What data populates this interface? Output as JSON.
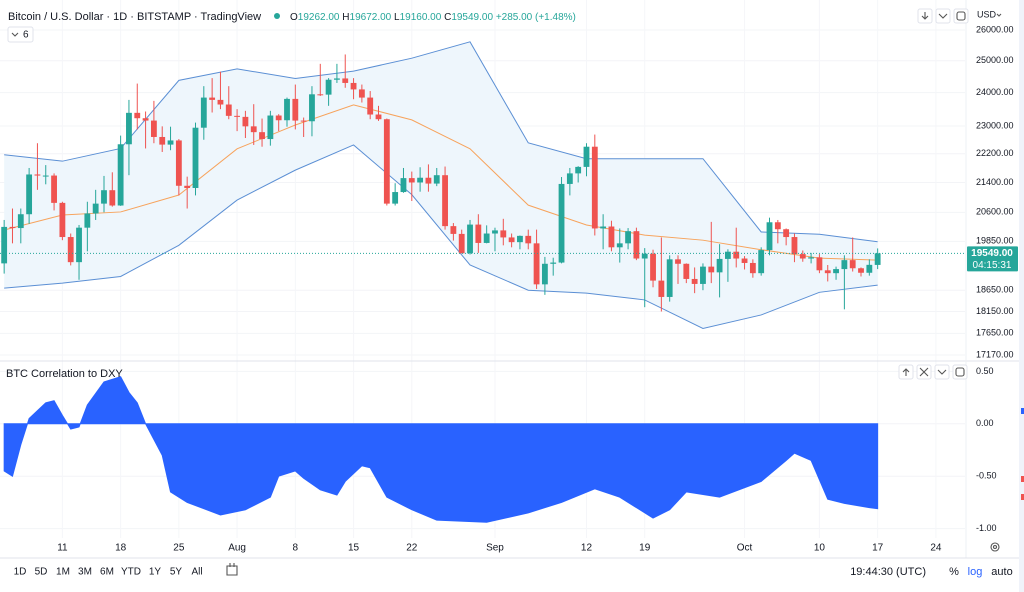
{
  "header": {
    "title": "Bitcoin / U.S. Dollar · 1D · BITSTAMP · TradingView",
    "ohlc": [
      [
        "O",
        "19262.00"
      ],
      [
        "H",
        "19672.00"
      ],
      [
        "L",
        "19160.00"
      ],
      [
        "C",
        "19549.00"
      ],
      [
        "",
        "+285.00 (+1.48%)"
      ]
    ],
    "indicator_count": "6",
    "currency": "USD"
  },
  "chart_data": [
    {
      "type": "candlestick",
      "log": true,
      "grid": true,
      "up_color": "#26a69a",
      "down_color": "#ef5350",
      "price_label": "19549.00",
      "countdown": "04:15:31",
      "xlim": [
        -0.5,
        115.5
      ],
      "ylim": [
        17060,
        26740
      ],
      "yticks": [
        {
          "value": 26000,
          "label": "26000.00"
        },
        {
          "value": 25000,
          "label": "25000.00"
        },
        {
          "value": 24000,
          "label": "24000.00"
        },
        {
          "value": 23000,
          "label": "23000.00"
        },
        {
          "value": 22200,
          "label": "22200.00"
        },
        {
          "value": 21400,
          "label": "21400.00"
        },
        {
          "value": 20600,
          "label": "20600.00"
        },
        {
          "value": 19850,
          "label": "19850.00"
        },
        {
          "value": 18650,
          "label": "18650.00"
        },
        {
          "value": 18150,
          "label": "18150.00"
        },
        {
          "value": 17650,
          "label": "17650.00"
        },
        {
          "value": 17170,
          "label": "17170.00"
        }
      ],
      "x": [
        0,
        1,
        2,
        3,
        4,
        5,
        6,
        7,
        8,
        9,
        10,
        11,
        12,
        13,
        14,
        15,
        16,
        17,
        18,
        19,
        20,
        21,
        22,
        23,
        24,
        25,
        26,
        27,
        28,
        29,
        30,
        31,
        32,
        33,
        34,
        35,
        36,
        37,
        38,
        39,
        40,
        41,
        42,
        43,
        44,
        45,
        46,
        47,
        48,
        49,
        50,
        51,
        52,
        53,
        54,
        55,
        56,
        57,
        58,
        59,
        60,
        61,
        62,
        63,
        64,
        65,
        66,
        67,
        68,
        69,
        70,
        71,
        72,
        73,
        74,
        75,
        76,
        77,
        78,
        79,
        80,
        81,
        82,
        83,
        84,
        85,
        86,
        87,
        88,
        89,
        90,
        91,
        92,
        93,
        94,
        95,
        96,
        97,
        98,
        99,
        100,
        101,
        102,
        103,
        104,
        105
      ],
      "open": [
        19300,
        20220,
        20190,
        20550,
        21620,
        21590,
        21590,
        20850,
        19960,
        19330,
        20200,
        20570,
        20830,
        21190,
        20780,
        22470,
        23390,
        23230,
        23160,
        22680,
        22460,
        22580,
        21310,
        21250,
        22950,
        23850,
        23780,
        23640,
        23300,
        23270,
        22990,
        22820,
        22620,
        23310,
        23170,
        23810,
        23160,
        23140,
        23950,
        23940,
        24400,
        24440,
        24300,
        24100,
        23850,
        23340,
        23200,
        20830,
        21140,
        21520,
        21400,
        21530,
        21370,
        21600,
        20240,
        20040,
        19550,
        20280,
        19810,
        20050,
        20130,
        19950,
        19830,
        19990,
        19800,
        18790,
        19290,
        19320,
        21360,
        21650,
        21830,
        22400,
        20180,
        20230,
        19700,
        19800,
        20110,
        19420,
        19540,
        18880,
        18490,
        19400,
        19290,
        18920,
        18800,
        19220,
        19080,
        19410,
        19590,
        19420,
        19310,
        19060,
        19630,
        20340,
        20160,
        19960,
        19530,
        19420,
        19450,
        19130,
        19060,
        19160,
        19380,
        19180,
        19070,
        19262
      ],
      "high": [
        20400,
        20700,
        20700,
        21800,
        22500,
        21880,
        21650,
        20880,
        20050,
        20270,
        20880,
        21200,
        21580,
        21680,
        22720,
        23780,
        24280,
        23430,
        23750,
        22990,
        22980,
        22620,
        21560,
        23100,
        24200,
        24450,
        24650,
        24200,
        23500,
        23450,
        23650,
        23220,
        23450,
        23350,
        23850,
        24250,
        23250,
        24200,
        24900,
        24450,
        24900,
        25200,
        24450,
        24250,
        24050,
        23600,
        23220,
        21380,
        21800,
        21700,
        21820,
        21900,
        21800,
        21840,
        20320,
        20150,
        20400,
        20550,
        20260,
        20200,
        20430,
        20050,
        20000,
        20150,
        20150,
        19460,
        19440,
        21550,
        21800,
        21850,
        22500,
        22750,
        20550,
        20380,
        20180,
        20190,
        20200,
        19680,
        19640,
        19950,
        19500,
        19500,
        19300,
        19200,
        19300,
        20350,
        19780,
        19650,
        20200,
        19480,
        19400,
        19700,
        20460,
        20400,
        20180,
        20050,
        19620,
        19560,
        19530,
        19260,
        19220,
        19500,
        19950,
        19200,
        19400,
        19672
      ],
      "low": [
        19050,
        19800,
        19800,
        20300,
        21200,
        21350,
        20650,
        19880,
        19250,
        18900,
        19600,
        20400,
        20600,
        20750,
        20770,
        21600,
        22900,
        22350,
        22500,
        22250,
        22300,
        21050,
        20700,
        21050,
        22600,
        23400,
        23500,
        23200,
        22850,
        22650,
        22450,
        22400,
        22430,
        22850,
        22980,
        22900,
        22680,
        22700,
        23900,
        23600,
        24300,
        24150,
        23800,
        23700,
        23200,
        23150,
        20780,
        20780,
        21120,
        20900,
        21150,
        21150,
        21300,
        20150,
        19870,
        19550,
        19520,
        19560,
        19800,
        19600,
        19750,
        19700,
        19650,
        19650,
        18680,
        18540,
        19000,
        19300,
        21050,
        21400,
        21570,
        20000,
        19650,
        19600,
        19320,
        19650,
        19380,
        18250,
        18720,
        18150,
        18380,
        18800,
        18820,
        18580,
        18650,
        18820,
        18480,
        18850,
        19200,
        19150,
        18950,
        19000,
        19500,
        19800,
        19750,
        19330,
        19340,
        19300,
        19060,
        18860,
        18900,
        18200,
        19100,
        18980,
        19000,
        19160
      ],
      "close": [
        20220,
        20190,
        20550,
        21620,
        21590,
        21590,
        20850,
        19960,
        19330,
        20200,
        20570,
        20830,
        21190,
        20780,
        22470,
        23390,
        23230,
        23160,
        22680,
        22460,
        22580,
        21310,
        21250,
        22950,
        23850,
        23780,
        23640,
        23300,
        23270,
        22990,
        22820,
        22620,
        23310,
        23170,
        23810,
        23160,
        23140,
        23950,
        23940,
        24400,
        24440,
        24300,
        24100,
        23850,
        23340,
        23200,
        20830,
        21140,
        21520,
        21400,
        21530,
        21370,
        21600,
        20240,
        20040,
        19550,
        20280,
        19810,
        20050,
        20130,
        19950,
        19830,
        19990,
        19800,
        18790,
        19290,
        19320,
        21360,
        21650,
        21830,
        22400,
        20180,
        20230,
        19700,
        19800,
        20110,
        19420,
        19540,
        18880,
        18490,
        19400,
        19290,
        18920,
        18800,
        19220,
        19080,
        19410,
        19590,
        19420,
        19310,
        19060,
        19630,
        20340,
        20160,
        19960,
        19530,
        19420,
        19450,
        19130,
        19060,
        19160,
        19380,
        19180,
        19070,
        19264,
        19549
      ],
      "band_fill": "#eef6fc",
      "overlays": [
        {
          "color": "#5b8fd4",
          "x": [
            0,
            7,
            14,
            21,
            28,
            35,
            42,
            49,
            56,
            63,
            70,
            77,
            84,
            91,
            98,
            105
          ],
          "values": [
            22170,
            21990,
            22350,
            24380,
            24740,
            24440,
            24670,
            25080,
            25610,
            22510,
            22060,
            22060,
            22060,
            20090,
            20030,
            19840
          ]
        },
        {
          "color": "#5b8fd4",
          "x": [
            0,
            7,
            14,
            21,
            28,
            35,
            42,
            49,
            56,
            63,
            70,
            77,
            84,
            91,
            98,
            105
          ],
          "values": [
            18700,
            18820,
            18980,
            19750,
            20925,
            21740,
            22450,
            21070,
            19260,
            18650,
            18580,
            18420,
            17760,
            18070,
            18600,
            18770
          ]
        },
        {
          "color": "#f7a35c",
          "x": [
            0,
            7,
            14,
            21,
            28,
            35,
            42,
            49,
            56,
            63,
            70,
            77,
            84,
            91,
            98,
            105
          ],
          "values": [
            20140,
            20530,
            20610,
            21060,
            22340,
            23030,
            23630,
            23180,
            22340,
            20790,
            20270,
            20010,
            19880,
            19640,
            19430,
            19380
          ]
        }
      ]
    },
    {
      "type": "area",
      "title": "BTC Correlation to DXY",
      "color": "#2962ff",
      "grid": true,
      "xlim": [
        -0.5,
        115.5
      ],
      "ylim": [
        -1.09,
        0.59
      ],
      "yticks": [
        {
          "value": 0.5,
          "label": "0.50"
        },
        {
          "value": 0,
          "label": "0.00"
        },
        {
          "value": -0.5,
          "label": "-0.50"
        },
        {
          "value": -1,
          "label": "-1.00"
        }
      ],
      "xticks": [
        {
          "value": 7,
          "label": "11"
        },
        {
          "value": 14,
          "label": "18"
        },
        {
          "value": 21,
          "label": "25"
        },
        {
          "value": 28,
          "label": "Aug"
        },
        {
          "value": 35,
          "label": "8"
        },
        {
          "value": 42,
          "label": "15"
        },
        {
          "value": 49,
          "label": "22"
        },
        {
          "value": 59,
          "label": "Sep"
        },
        {
          "value": 70,
          "label": "12"
        },
        {
          "value": 77,
          "label": "19"
        },
        {
          "value": 89,
          "label": "Oct"
        },
        {
          "value": 98,
          "label": "10"
        },
        {
          "value": 105,
          "label": "17"
        },
        {
          "value": 112,
          "label": "24"
        }
      ],
      "x": [
        0,
        1,
        2,
        3,
        5,
        6,
        7,
        8,
        9,
        10,
        12,
        14,
        15,
        16,
        17,
        19,
        20,
        22,
        26,
        29,
        32,
        33,
        35,
        36,
        38,
        40,
        41,
        43,
        44,
        46,
        49,
        52,
        58,
        63,
        67,
        71,
        74,
        76,
        78,
        80,
        82,
        86,
        91,
        94,
        95,
        97,
        99,
        101,
        104,
        105
      ],
      "values": [
        -0.45,
        -0.5,
        -0.2,
        0.05,
        0.2,
        0.22,
        0.08,
        -0.05,
        -0.03,
        0.18,
        0.4,
        0.45,
        0.3,
        0.2,
        0.0,
        -0.3,
        -0.65,
        -0.75,
        -0.87,
        -0.82,
        -0.7,
        -0.5,
        -0.45,
        -0.52,
        -0.63,
        -0.68,
        -0.55,
        -0.4,
        -0.42,
        -0.7,
        -0.82,
        -0.92,
        -0.94,
        -0.85,
        -0.75,
        -0.62,
        -0.7,
        -0.8,
        -0.9,
        -0.82,
        -0.65,
        -0.7,
        -0.55,
        -0.35,
        -0.28,
        -0.35,
        -0.72,
        -0.76,
        -0.8,
        -0.81
      ]
    }
  ],
  "toolbar": {
    "ranges": [
      "1D",
      "5D",
      "1M",
      "3M",
      "6M",
      "YTD",
      "1Y",
      "5Y",
      "All"
    ],
    "clock": "19:44:30 (UTC)",
    "options": [
      "%",
      "log",
      "auto"
    ]
  }
}
